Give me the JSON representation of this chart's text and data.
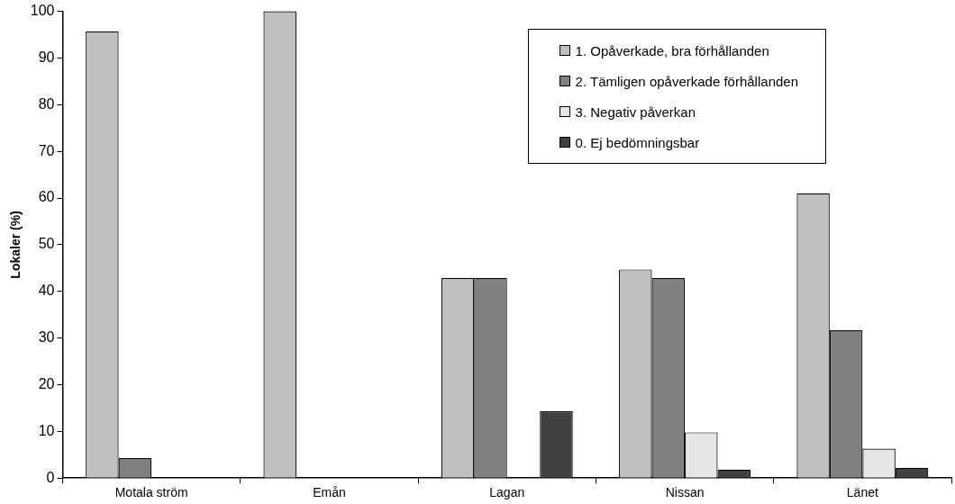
{
  "chart_data": {
    "type": "bar",
    "ylabel": "Lokaler (%)",
    "categories": [
      "Motala ström",
      "Emån",
      "Lagan",
      "Nissan",
      "Länet"
    ],
    "series": [
      {
        "name": "1. Opåverkade, bra förhållanden",
        "color": "#c0c0c0",
        "values": [
          95.7,
          100,
          42.9,
          44.7,
          61.0
        ]
      },
      {
        "name": "2. Tämligen opåverkade förhållanden",
        "color": "#808080",
        "values": [
          4.3,
          null,
          42.9,
          42.9,
          31.7
        ]
      },
      {
        "name": "3. Negativ påverkan",
        "color": "#e6e6e6",
        "values": [
          null,
          null,
          null,
          9.8,
          6.3
        ]
      },
      {
        "name": "0. Ej bedömningsbar",
        "color": "#404040",
        "values": [
          null,
          null,
          14.3,
          1.8,
          2.2
        ]
      }
    ],
    "ylim": [
      0,
      100
    ],
    "yticks": [
      0,
      10,
      20,
      30,
      40,
      50,
      60,
      70,
      80,
      90,
      100
    ],
    "grid": false,
    "legend": "top right"
  }
}
